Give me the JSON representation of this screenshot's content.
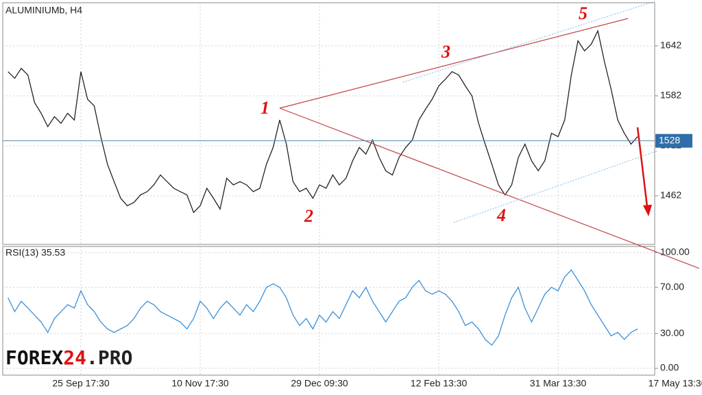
{
  "chart_data": [
    {
      "type": "line",
      "title": "ALUMINIUMb, H4",
      "color": "#222222",
      "categories": [
        null,
        null,
        null,
        null,
        null,
        null,
        null,
        null,
        null,
        null,
        null,
        "25 Sep 17:30",
        null,
        null,
        null,
        null,
        null,
        null,
        null,
        null,
        null,
        null,
        null,
        null,
        null,
        null,
        null,
        null,
        null,
        "10 Nov 17:30",
        null,
        null,
        null,
        null,
        null,
        null,
        null,
        null,
        null,
        null,
        null,
        null,
        null,
        null,
        null,
        null,
        null,
        "29 Dec 09:30",
        null,
        null,
        null,
        null,
        null,
        null,
        null,
        null,
        null,
        null,
        null,
        null,
        null,
        null,
        null,
        null,
        null,
        "12 Feb 13:30",
        null,
        null,
        null,
        null,
        null,
        null,
        null,
        null,
        null,
        null,
        null,
        null,
        null,
        null,
        null,
        null,
        null,
        "31 Mar 13:30",
        null,
        null,
        null,
        null,
        null,
        null,
        null,
        null,
        null,
        null,
        null,
        null,
        null,
        null,
        null,
        null,
        null,
        "17 May 13:30"
      ],
      "values": [
        1611,
        1603,
        1615,
        1607,
        1574,
        1561,
        1545,
        1557,
        1549,
        1561,
        1553,
        1611,
        1578,
        1570,
        1533,
        1500,
        1479,
        1459,
        1450,
        1454,
        1463,
        1467,
        1475,
        1487,
        1479,
        1471,
        1467,
        1463,
        1442,
        1450,
        1471,
        1459,
        1446,
        1483,
        1475,
        1479,
        1475,
        1467,
        1471,
        1500,
        1520,
        1553,
        1524,
        1479,
        1467,
        1471,
        1459,
        1475,
        1471,
        1487,
        1475,
        1483,
        1504,
        1520,
        1512,
        1529,
        1508,
        1492,
        1487,
        1508,
        1520,
        1529,
        1553,
        1566,
        1578,
        1594,
        1602,
        1611,
        1607,
        1594,
        1582,
        1549,
        1524,
        1500,
        1475,
        1463,
        1475,
        1508,
        1524,
        1504,
        1492,
        1504,
        1537,
        1533,
        1553,
        1607,
        1648,
        1636,
        1644,
        1660,
        1623,
        1590,
        1553,
        1537,
        1524,
        1533,
        null,
        null,
        null,
        null,
        null,
        null
      ],
      "ylim": [
        1403.6,
        1693.8
      ],
      "yticks": [
        1462,
        1522,
        1582,
        1642
      ],
      "grid": true,
      "current_price": 1528,
      "annotations": [
        "1",
        "2",
        "3",
        "4",
        "5"
      ]
    },
    {
      "type": "line",
      "title": "RSI(13) 35.53",
      "color": "#3a8fd8",
      "values": [
        61,
        49,
        58,
        52,
        46,
        40,
        31,
        43,
        49,
        55,
        52,
        67,
        55,
        49,
        40,
        34,
        31,
        34,
        37,
        43,
        52,
        58,
        55,
        49,
        46,
        43,
        40,
        34,
        43,
        58,
        52,
        43,
        52,
        58,
        52,
        46,
        55,
        49,
        58,
        70,
        73,
        70,
        61,
        46,
        37,
        43,
        34,
        46,
        40,
        49,
        43,
        55,
        67,
        61,
        70,
        58,
        49,
        40,
        49,
        58,
        61,
        70,
        76,
        67,
        64,
        67,
        64,
        58,
        49,
        37,
        40,
        34,
        25,
        20,
        28,
        46,
        61,
        70,
        52,
        40,
        52,
        64,
        70,
        67,
        79,
        85,
        76,
        67,
        55,
        46,
        37,
        28,
        31,
        25,
        31,
        34,
        null,
        null,
        null,
        null,
        null,
        null
      ],
      "ylim": [
        -5.9,
        105.3
      ],
      "yticks": [
        {
          "value": 0,
          "label": "0.00"
        },
        {
          "value": 30,
          "label": "30.00"
        },
        {
          "value": 70,
          "label": "70.00"
        },
        {
          "value": 100,
          "label": "100.00"
        }
      ]
    }
  ],
  "watermark": [
    "FOREX",
    "24",
    ".PRO"
  ]
}
